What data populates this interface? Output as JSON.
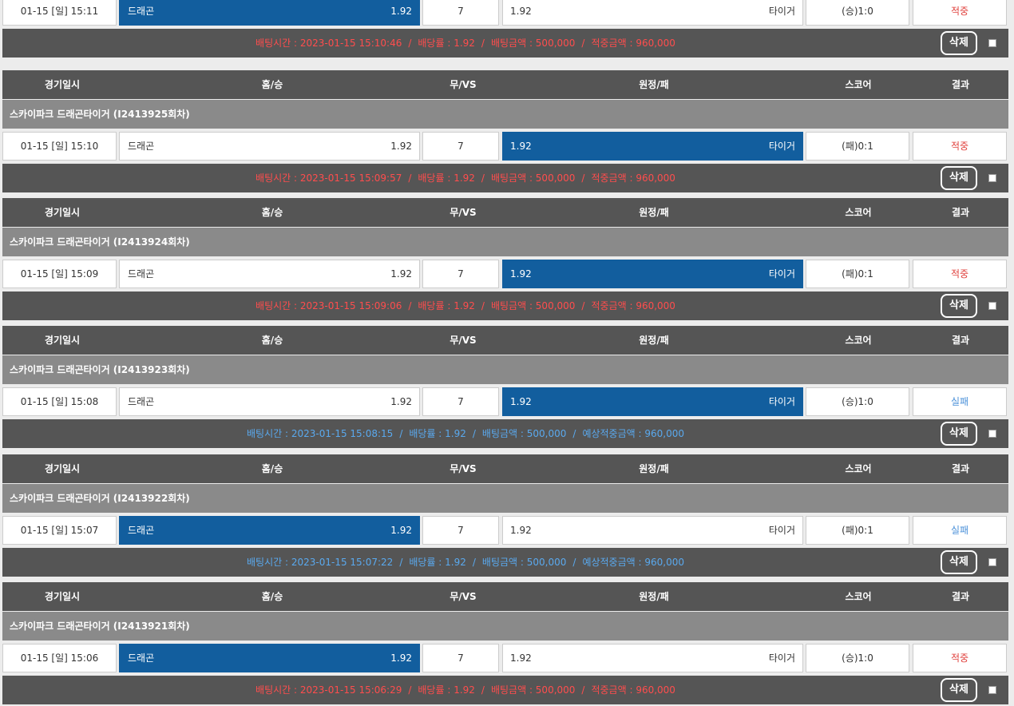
{
  "header": {
    "date": "경기일시",
    "home": "홈/승",
    "draw": "무/VS",
    "away": "원정/패",
    "score": "스코어",
    "result": "결과"
  },
  "labels": {
    "bet_time": "배팅시간",
    "odds": "배당률",
    "bet_amount": "배팅금액",
    "win_amount": "적중금액",
    "expected_amount": "예상적중금액",
    "delete": "삭제"
  },
  "colors": {
    "selected": "#125e9e",
    "header_bg": "#555555",
    "title_bg": "#8a8a8a",
    "win": "#e0413d",
    "lose": "#4a90d9"
  },
  "bets": [
    {
      "title": "",
      "date": "01-15 [일] 15:11",
      "home_name": "드래곤",
      "home_odds": "1.92",
      "draw": "7",
      "away_odds": "1.92",
      "away_name": "타이거",
      "selected": "home",
      "score": "(승)1:0",
      "result": "적중",
      "result_type": "win",
      "bet_time": "2023-01-15 15:10:46",
      "odds": "1.92",
      "bet_amount": "500,000",
      "amount": "960,000"
    },
    {
      "title": "스카이파크 드래곤타이거 (I2413925회차)",
      "date": "01-15 [일] 15:10",
      "home_name": "드래곤",
      "home_odds": "1.92",
      "draw": "7",
      "away_odds": "1.92",
      "away_name": "타이거",
      "selected": "away",
      "score": "(패)0:1",
      "result": "적중",
      "result_type": "win",
      "bet_time": "2023-01-15 15:09:57",
      "odds": "1.92",
      "bet_amount": "500,000",
      "amount": "960,000"
    },
    {
      "title": "스카이파크 드래곤타이거 (I2413924회차)",
      "date": "01-15 [일] 15:09",
      "home_name": "드래곤",
      "home_odds": "1.92",
      "draw": "7",
      "away_odds": "1.92",
      "away_name": "타이거",
      "selected": "away",
      "score": "(패)0:1",
      "result": "적중",
      "result_type": "win",
      "bet_time": "2023-01-15 15:09:06",
      "odds": "1.92",
      "bet_amount": "500,000",
      "amount": "960,000"
    },
    {
      "title": "스카이파크 드래곤타이거 (I2413923회차)",
      "date": "01-15 [일] 15:08",
      "home_name": "드래곤",
      "home_odds": "1.92",
      "draw": "7",
      "away_odds": "1.92",
      "away_name": "타이거",
      "selected": "away",
      "score": "(승)1:0",
      "result": "실패",
      "result_type": "lose",
      "bet_time": "2023-01-15 15:08:15",
      "odds": "1.92",
      "bet_amount": "500,000",
      "amount": "960,000"
    },
    {
      "title": "스카이파크 드래곤타이거 (I2413922회차)",
      "date": "01-15 [일] 15:07",
      "home_name": "드래곤",
      "home_odds": "1.92",
      "draw": "7",
      "away_odds": "1.92",
      "away_name": "타이거",
      "selected": "home",
      "score": "(패)0:1",
      "result": "실패",
      "result_type": "lose",
      "bet_time": "2023-01-15 15:07:22",
      "odds": "1.92",
      "bet_amount": "500,000",
      "amount": "960,000"
    },
    {
      "title": "스카이파크 드래곤타이거 (I2413921회차)",
      "date": "01-15 [일] 15:06",
      "home_name": "드래곤",
      "home_odds": "1.92",
      "draw": "7",
      "away_odds": "1.92",
      "away_name": "타이거",
      "selected": "home",
      "score": "(승)1:0",
      "result": "적중",
      "result_type": "win",
      "bet_time": "2023-01-15 15:06:29",
      "odds": "1.92",
      "bet_amount": "500,000",
      "amount": "960,000"
    }
  ]
}
